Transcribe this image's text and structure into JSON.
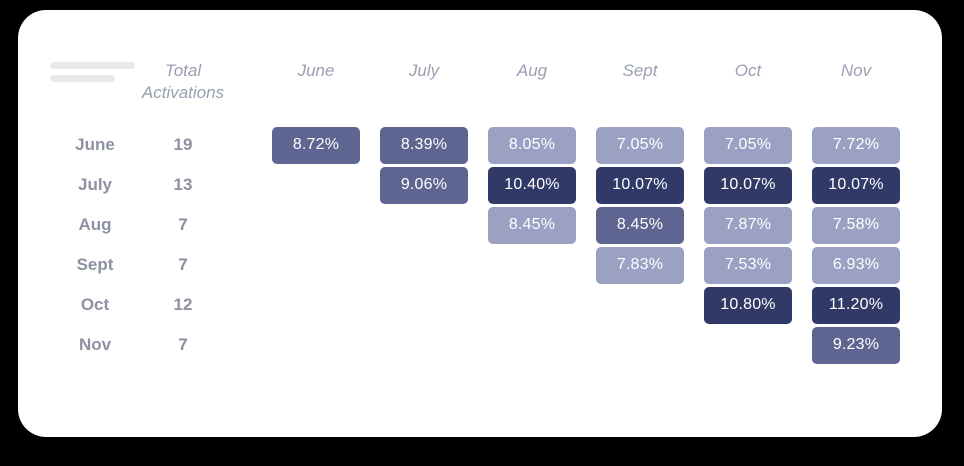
{
  "colors": {
    "page_background": "#000000",
    "card_background": "#ffffff",
    "header_text": "#9aa0b2",
    "row_label_text": "#8d91a2",
    "cell_text": "#ffffff",
    "skeleton_bar": "#e9e9ed",
    "levels": {
      "light": "#9aa1c2",
      "medium": "#5d6590",
      "dark": "#313a66"
    }
  },
  "header": {
    "total_label_line1": "Total",
    "total_label_line2": "Activations",
    "months": [
      "June",
      "July",
      "Aug",
      "Sept",
      "Oct",
      "Nov"
    ]
  },
  "chart_data": {
    "type": "heatmap",
    "title": "",
    "description": "Cohort activation-rate heatmap; rows are starting cohort months with total activations, columns are calendar months, cell values are activation percentages shaded light/medium/dark by magnitude",
    "columns": [
      "June",
      "July",
      "Aug",
      "Sept",
      "Oct",
      "Nov"
    ],
    "row_header": "Total Activations",
    "value_format": "percent",
    "legend": "none",
    "rows": [
      {
        "label": "June",
        "total_activations": "19",
        "cells": [
          {
            "column": "June",
            "value": "8.72%",
            "level": "medium"
          },
          {
            "column": "July",
            "value": "8.39%",
            "level": "medium"
          },
          {
            "column": "Aug",
            "value": "8.05%",
            "level": "light"
          },
          {
            "column": "Sept",
            "value": "7.05%",
            "level": "light"
          },
          {
            "column": "Oct",
            "value": "7.05%",
            "level": "light"
          },
          {
            "column": "Nov",
            "value": "7.72%",
            "level": "light"
          }
        ]
      },
      {
        "label": "July",
        "total_activations": "13",
        "cells": [
          {
            "column": "July",
            "value": "9.06%",
            "level": "medium"
          },
          {
            "column": "Aug",
            "value": "10.40%",
            "level": "dark"
          },
          {
            "column": "Sept",
            "value": "10.07%",
            "level": "dark"
          },
          {
            "column": "Oct",
            "value": "10.07%",
            "level": "dark"
          },
          {
            "column": "Nov",
            "value": "10.07%",
            "level": "dark"
          }
        ]
      },
      {
        "label": "Aug",
        "total_activations": "7",
        "cells": [
          {
            "column": "Aug",
            "value": "8.45%",
            "level": "light"
          },
          {
            "column": "Sept",
            "value": "8.45%",
            "level": "medium"
          },
          {
            "column": "Oct",
            "value": "7.87%",
            "level": "light"
          },
          {
            "column": "Nov",
            "value": "7.58%",
            "level": "light"
          }
        ]
      },
      {
        "label": "Sept",
        "total_activations": "7",
        "cells": [
          {
            "column": "Sept",
            "value": "7.83%",
            "level": "light"
          },
          {
            "column": "Oct",
            "value": "7.53%",
            "level": "light"
          },
          {
            "column": "Nov",
            "value": "6.93%",
            "level": "light"
          }
        ]
      },
      {
        "label": "Oct",
        "total_activations": "12",
        "cells": [
          {
            "column": "Oct",
            "value": "10.80%",
            "level": "dark"
          },
          {
            "column": "Nov",
            "value": "11.20%",
            "level": "dark"
          }
        ]
      },
      {
        "label": "Nov",
        "total_activations": "7",
        "cells": [
          {
            "column": "Nov",
            "value": "9.23%",
            "level": "medium"
          }
        ]
      }
    ]
  }
}
